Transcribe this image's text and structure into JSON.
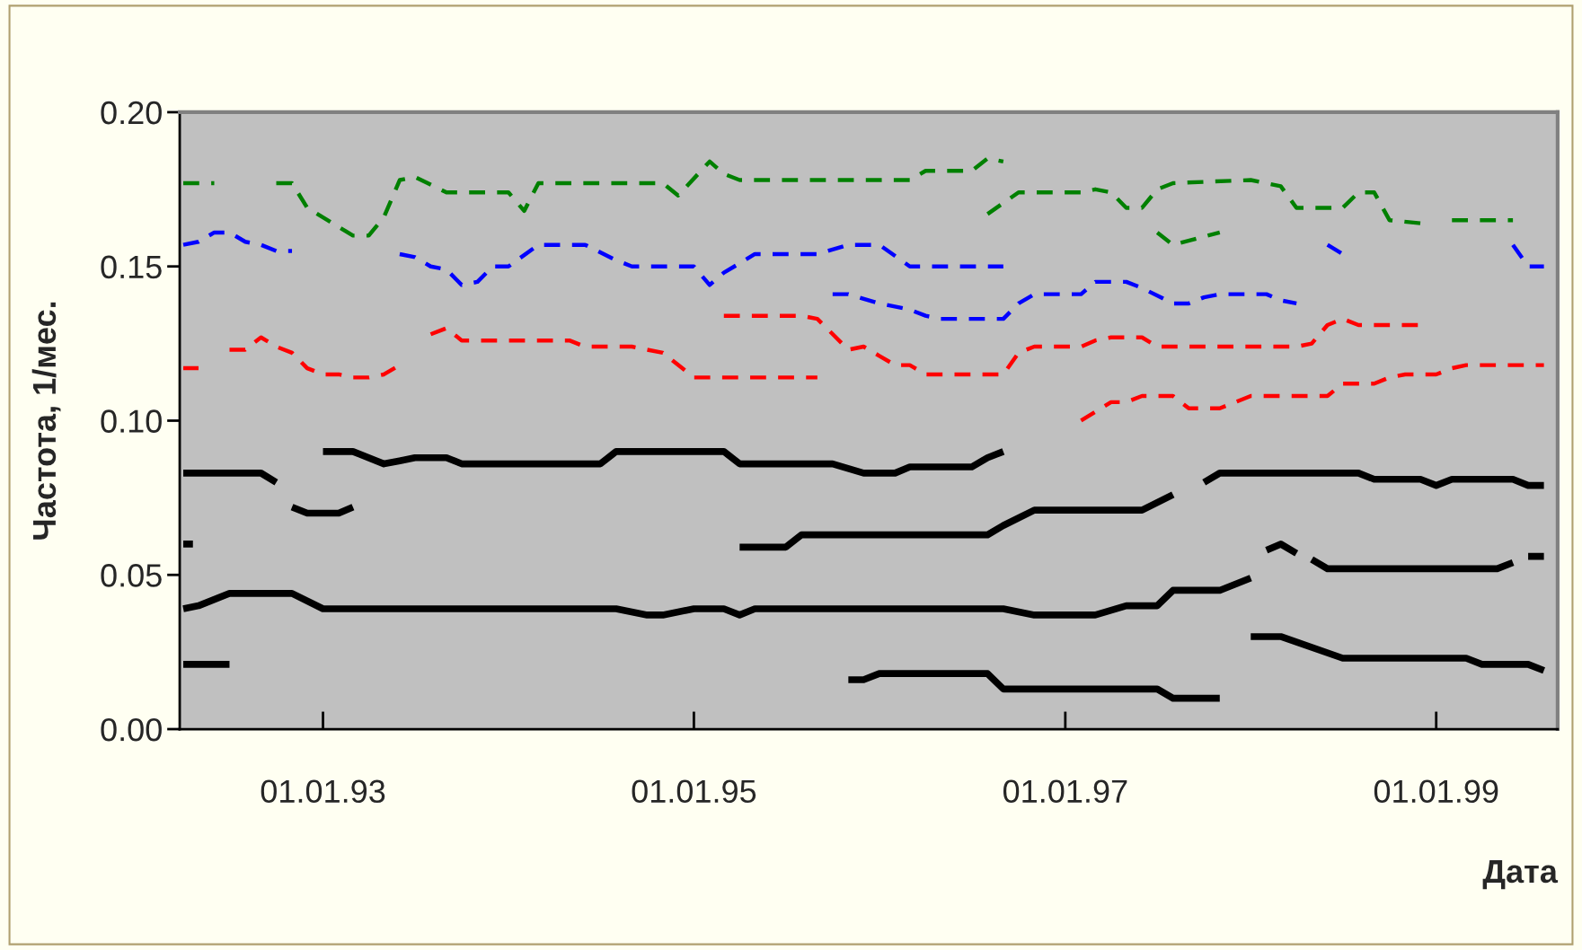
{
  "chart_data": {
    "type": "line",
    "xlabel": "Дата",
    "ylabel": "Частота, 1/мес.",
    "xlim": [
      "1992-03-25",
      "1999-08-28"
    ],
    "xticks": [
      {
        "value": "1993-01",
        "label": "01.01.93"
      },
      {
        "value": "1995-01",
        "label": "01.01.95"
      },
      {
        "value": "1997-01",
        "label": "01.01.97"
      },
      {
        "value": "1999-01",
        "label": "01.01.99"
      }
    ],
    "ylim": [
      0,
      0.2
    ],
    "yticks": [
      {
        "value": 0,
        "label": "0.00"
      },
      {
        "value": 0.05,
        "label": "0.05"
      },
      {
        "value": 0.1,
        "label": "0.10"
      },
      {
        "value": 0.15,
        "label": "0.15"
      },
      {
        "value": 0.2,
        "label": "0.20"
      }
    ],
    "grid": false,
    "marker": "none",
    "series": [
      {
        "color": "#008000",
        "line_style": "dashed",
        "x": [
          "1992-04",
          "1992-06",
          "1992-08",
          "1992-10",
          "1992-11",
          "1992-12",
          "1993-03",
          "1993-04",
          "1993-05",
          "1993-06",
          "1993-07",
          "1993-09",
          "1994-01",
          "1994-02",
          "1994-03",
          "1994-11",
          "1994-12",
          "1995-02",
          "1995-03",
          "1995-04",
          "1996-03",
          "1996-04",
          "1996-07",
          "1996-08",
          "1996-09",
          "1996-11",
          "1997-07",
          "1997-08",
          "1997-11"
        ],
        "values": [
          0.177,
          0.177,
          null,
          0.177,
          0.177,
          0.169,
          0.16,
          0.16,
          0.166,
          0.178,
          0.179,
          0.174,
          0.174,
          0.168,
          0.177,
          0.177,
          0.173,
          0.184,
          0.18,
          0.178,
          0.178,
          0.181,
          0.181,
          0.185,
          0.184,
          null,
          0.161,
          0.157,
          0.161
        ]
      },
      {
        "color": "#008000",
        "line_style": "dashed",
        "x": [
          "1996-08",
          "1996-10",
          "1997-02",
          "1997-03",
          "1997-04",
          "1997-05",
          "1997-06",
          "1997-07",
          "1997-08",
          "1998-01",
          "1998-03",
          "1998-04",
          "1998-07",
          "1998-08",
          "1998-09",
          "1998-10",
          "1998-12",
          "1999-01",
          "1999-02",
          "1999-04",
          "1999-06"
        ],
        "values": [
          0.167,
          0.174,
          0.174,
          0.175,
          0.174,
          0.169,
          0.169,
          0.175,
          0.177,
          0.178,
          0.176,
          0.169,
          0.169,
          0.174,
          0.174,
          0.165,
          0.164,
          null,
          0.165,
          0.165,
          0.165
        ]
      },
      {
        "color": "#0000ff",
        "line_style": "dashed",
        "x": [
          "1992-04",
          "1992-05",
          "1992-06",
          "1992-07",
          "1992-08",
          "1992-09",
          "1992-10",
          "1992-11",
          "1993-02",
          "1993-06",
          "1993-07",
          "1993-08",
          "1993-09",
          "1993-10",
          "1993-11",
          "1993-12",
          "1994-01",
          "1994-03",
          "1994-06",
          "1994-08",
          "1994-09",
          "1995-01",
          "1995-02",
          "1995-03",
          "1995-04",
          "1995-05",
          "1995-09",
          "1995-11",
          "1996-01",
          "1996-03",
          "1996-09",
          "1996-10",
          "1998-06",
          "1998-07",
          "1998-08",
          "1999-06",
          "1999-07",
          "1999-08"
        ],
        "values": [
          0.157,
          0.158,
          0.161,
          0.161,
          0.158,
          0.157,
          0.155,
          0.155,
          null,
          0.154,
          0.153,
          0.15,
          0.149,
          0.144,
          0.145,
          0.15,
          0.15,
          0.157,
          0.157,
          0.152,
          0.15,
          0.15,
          0.144,
          0.148,
          0.151,
          0.154,
          0.154,
          0.157,
          0.157,
          0.15,
          0.15,
          null,
          0.157,
          0.154,
          null,
          0.157,
          0.15,
          0.15
        ]
      },
      {
        "color": "#0000ff",
        "line_style": "dashed",
        "x": [
          "1995-10",
          "1995-11",
          "1996-01",
          "1996-03",
          "1996-04",
          "1996-05",
          "1996-09",
          "1996-10",
          "1996-11",
          "1997-02",
          "1997-03",
          "1997-05",
          "1997-06",
          "1997-08",
          "1997-09",
          "1997-10",
          "1997-11",
          "1998-02",
          "1998-03",
          "1998-04"
        ],
        "values": [
          0.141,
          0.141,
          0.138,
          0.136,
          0.134,
          0.133,
          0.133,
          0.138,
          0.141,
          0.141,
          0.145,
          0.145,
          0.143,
          0.138,
          0.138,
          0.14,
          0.141,
          0.141,
          0.139,
          0.138
        ]
      },
      {
        "color": "#ff0000",
        "line_style": "dashed",
        "x": [
          "1992-04",
          "1992-05",
          "1992-06",
          "1992-07",
          "1992-08",
          "1992-09",
          "1992-10",
          "1992-11",
          "1992-12",
          "1993-01",
          "1993-02",
          "1993-03",
          "1993-04",
          "1993-05",
          "1993-06",
          "1993-07",
          "1993-08",
          "1993-09",
          "1993-10",
          "1994-05",
          "1994-06",
          "1994-09",
          "1994-10",
          "1994-11",
          "1995-01",
          "1995-09"
        ],
        "values": [
          0.117,
          0.117,
          null,
          0.123,
          0.123,
          0.127,
          0.124,
          0.122,
          0.117,
          0.115,
          0.115,
          0.114,
          0.114,
          0.115,
          0.118,
          null,
          0.128,
          0.13,
          0.126,
          0.126,
          0.124,
          0.124,
          0.123,
          0.122,
          0.114,
          0.114
        ]
      },
      {
        "color": "#ff0000",
        "line_style": "dashed",
        "x": [
          "1995-03",
          "1995-08",
          "1995-09",
          "1995-11",
          "1995-12",
          "1996-01",
          "1996-02",
          "1996-03",
          "1996-04",
          "1996-08",
          "1996-09",
          "1996-10",
          "1996-11",
          "1997-02",
          "1997-03",
          "1997-04",
          "1997-06",
          "1997-07",
          "1998-04",
          "1998-05",
          "1998-06",
          "1998-07",
          "1998-08",
          "1998-12"
        ],
        "values": [
          0.134,
          0.134,
          0.133,
          0.123,
          0.124,
          0.121,
          0.118,
          0.118,
          0.115,
          0.115,
          0.115,
          0.122,
          0.124,
          0.124,
          0.126,
          0.127,
          0.127,
          0.124,
          0.124,
          0.125,
          0.131,
          0.133,
          0.131,
          0.131
        ]
      },
      {
        "color": "#ff0000",
        "line_style": "dashed",
        "x": [
          "1997-02",
          "1997-04",
          "1997-05",
          "1997-06",
          "1997-08",
          "1997-09",
          "1997-11",
          "1998-01",
          "1998-06",
          "1998-07",
          "1998-09",
          "1998-10",
          "1998-11",
          "1999-01",
          "1999-02",
          "1999-03",
          "1999-08"
        ],
        "values": [
          0.1,
          0.106,
          0.106,
          0.108,
          0.108,
          0.104,
          0.104,
          0.108,
          0.108,
          0.112,
          0.112,
          0.114,
          0.115,
          0.115,
          0.117,
          0.118,
          0.118
        ]
      },
      {
        "color": "#000000",
        "line_style": "solid",
        "x": [
          "1992-04",
          "1992-09",
          "1992-10",
          "1992-11",
          "1993-01",
          "1993-03",
          "1993-05",
          "1993-06",
          "1993-07",
          "1993-09",
          "1993-10",
          "1994-07",
          "1994-08",
          "1995-03",
          "1995-04",
          "1995-10",
          "1995-12",
          "1996-02",
          "1996-03",
          "1996-07",
          "1996-08",
          "1996-09"
        ],
        "values": [
          0.083,
          0.083,
          0.08,
          null,
          0.09,
          0.09,
          0.086,
          0.087,
          0.088,
          0.088,
          0.086,
          0.086,
          0.09,
          0.09,
          0.086,
          0.086,
          0.083,
          0.083,
          0.085,
          0.085,
          0.088,
          0.09
        ]
      },
      {
        "color": "#000000",
        "line_style": "solid",
        "x": [
          "1992-11",
          "1992-12",
          "1993-02",
          "1993-03"
        ],
        "values": [
          0.072,
          0.07,
          0.07,
          0.072
        ]
      },
      {
        "color": "#000000",
        "line_style": "solid",
        "x": [
          "1995-04",
          "1995-07",
          "1995-08",
          "1996-08",
          "1996-09",
          "1996-11",
          "1997-06",
          "1997-08",
          "1997-09",
          "1997-10",
          "1997-11",
          "1998-08",
          "1998-09",
          "1998-12",
          "1999-01",
          "1999-02",
          "1999-06",
          "1999-07",
          "1999-08"
        ],
        "values": [
          0.059,
          0.059,
          0.063,
          0.063,
          0.066,
          0.071,
          0.071,
          0.076,
          null,
          0.08,
          0.083,
          0.083,
          0.081,
          0.081,
          0.079,
          0.081,
          0.081,
          0.079,
          0.079
        ]
      },
      {
        "color": "#000000",
        "line_style": "solid",
        "x": [
          "1992-04",
          "1992-04-20",
          "1992-06",
          "1998-02",
          "1998-03",
          "1998-04",
          "1998-04-20",
          "1998-05",
          "1998-06",
          "1999-05",
          "1999-06",
          "1999-06-20",
          "1999-07",
          "1999-08"
        ],
        "values": [
          0.06,
          0.06,
          null,
          0.058,
          0.06,
          0.057,
          null,
          0.055,
          0.052,
          0.052,
          0.054,
          null,
          0.056,
          0.056
        ]
      },
      {
        "color": "#000000",
        "line_style": "solid",
        "x": [
          "1992-04",
          "1992-05",
          "1992-07",
          "1992-11",
          "1993-01",
          "1994-08",
          "1994-10",
          "1994-11",
          "1995-01",
          "1995-03",
          "1995-04",
          "1995-05",
          "1996-09",
          "1996-11",
          "1997-03",
          "1997-05",
          "1997-07",
          "1997-08",
          "1997-11",
          "1998-01"
        ],
        "values": [
          0.039,
          0.04,
          0.044,
          0.044,
          0.039,
          0.039,
          0.037,
          0.037,
          0.039,
          0.039,
          0.037,
          0.039,
          0.039,
          0.037,
          0.037,
          0.04,
          0.04,
          0.045,
          0.045,
          0.049
        ]
      },
      {
        "color": "#000000",
        "line_style": "solid",
        "x": [
          "1992-04",
          "1992-07"
        ],
        "values": [
          0.021,
          0.021
        ]
      },
      {
        "color": "#000000",
        "line_style": "solid",
        "x": [
          "1995-11",
          "1995-12",
          "1996-01",
          "1996-08",
          "1996-09",
          "1997-07",
          "1997-08",
          "1997-11"
        ],
        "values": [
          0.016,
          0.016,
          0.018,
          0.018,
          0.013,
          0.013,
          0.01,
          0.01
        ]
      },
      {
        "color": "#000000",
        "line_style": "solid",
        "x": [
          "1998-01",
          "1998-03",
          "1998-07",
          "1999-03",
          "1999-04",
          "1999-07",
          "1999-08"
        ],
        "values": [
          0.03,
          0.03,
          0.023,
          0.023,
          0.021,
          0.021,
          0.019
        ]
      }
    ]
  }
}
